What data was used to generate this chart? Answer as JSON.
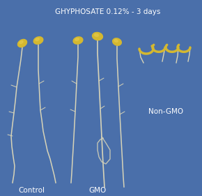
{
  "title": "GHYPHOSATE 0.12% - 3 days",
  "label_control": "Control",
  "label_gmo": "GMO",
  "label_nongmo": "Non-GMO",
  "bg_color": "#4a6faa",
  "text_color": "white",
  "title_fontsize": 7.5,
  "label_fontsize": 7.5,
  "figsize": [
    2.9,
    2.81
  ],
  "dpi": 100,
  "seed_color": "#d4b830",
  "root_color": "#d8d4b8",
  "shadow_color": "#b8b090"
}
